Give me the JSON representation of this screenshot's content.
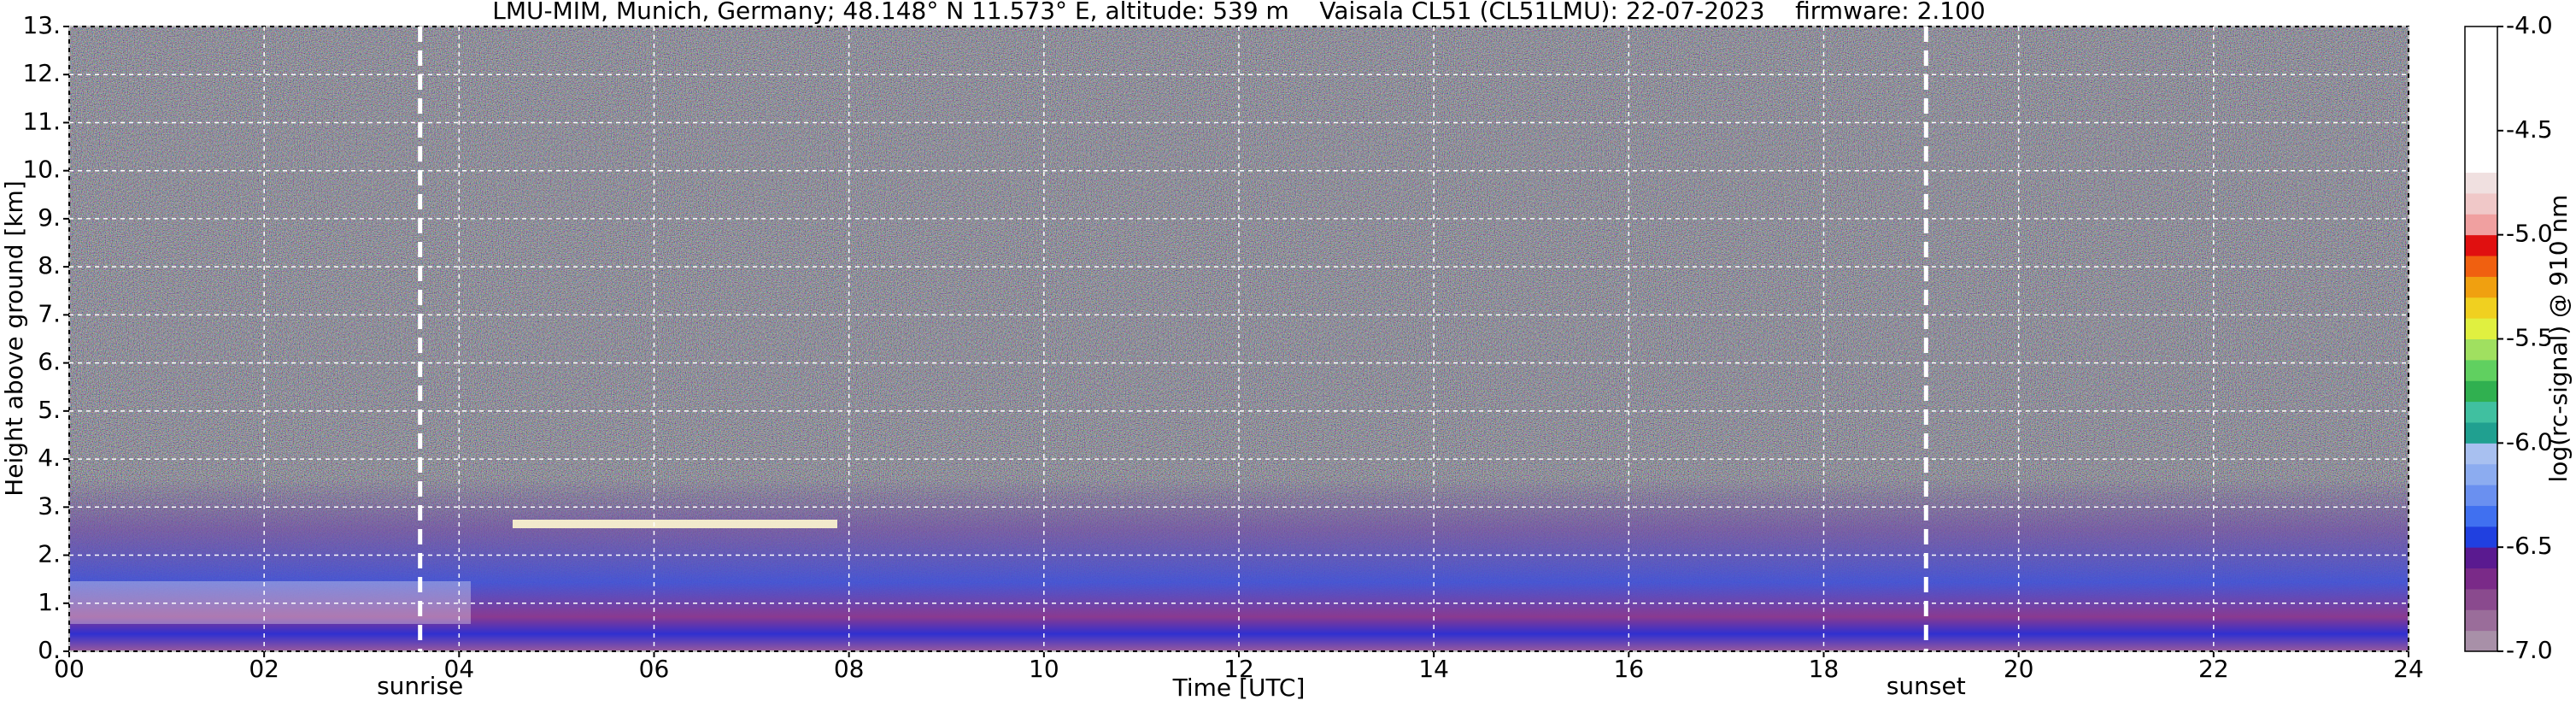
{
  "chart_data": {
    "type": "heatmap",
    "title": "LMU-MIM, Munich, Germany; 48.148° N 11.573° E, altitude: 539 m    Vaisala CL51 (CL51LMU): 22-07-2023    firmware: 2.100",
    "xlabel": "Time [UTC]",
    "ylabel": "Height above ground [km]",
    "xlim": [
      0,
      24
    ],
    "xticks": [
      {
        "value": 0,
        "label": "00"
      },
      {
        "value": 2,
        "label": "02"
      },
      {
        "value": 4,
        "label": "04"
      },
      {
        "value": 6,
        "label": "06"
      },
      {
        "value": 8,
        "label": "08"
      },
      10,
      12,
      14,
      16,
      18,
      20,
      22,
      24
    ],
    "ylim": [
      0,
      13
    ],
    "yticks": [
      {
        "value": 0,
        "label": "0."
      },
      {
        "value": 1,
        "label": "1."
      },
      {
        "value": 2,
        "label": "2."
      },
      {
        "value": 3,
        "label": "3."
      },
      {
        "value": 4,
        "label": "4."
      },
      {
        "value": 5,
        "label": "5."
      },
      {
        "value": 6,
        "label": "6."
      },
      {
        "value": 7,
        "label": "7."
      },
      {
        "value": 8,
        "label": "8."
      },
      {
        "value": 9,
        "label": "9."
      },
      {
        "value": 10,
        "label": "10."
      },
      {
        "value": 11,
        "label": "11."
      },
      {
        "value": 12,
        "label": "12."
      },
      {
        "value": 13,
        "label": "13."
      }
    ],
    "grid": true,
    "annotations": [
      {
        "x": 3.6,
        "label": "sunrise"
      },
      {
        "x": 19.05,
        "label": "sunset"
      }
    ],
    "colorbar": {
      "label": "log(rc-signal) @ 910 nm",
      "lim": [
        -7,
        -4
      ],
      "ticks": [
        {
          "value": -7,
          "label": "-7.0"
        },
        {
          "value": -6.5,
          "label": "-6.5"
        },
        {
          "value": -6,
          "label": "-6.0"
        },
        {
          "value": -5.5,
          "label": "-5.5"
        },
        {
          "value": -5,
          "label": "-5.0"
        },
        {
          "value": -4.5,
          "label": "-4.5"
        },
        {
          "value": -4,
          "label": "-4.0"
        }
      ],
      "colors": [
        "#a890a8",
        "#9a6d9a",
        "#8a4a8e",
        "#7a2a88",
        "#5a1a90",
        "#2040e0",
        "#4070f0",
        "#6a90f0",
        "#8cacf0",
        "#a8c0f0",
        "#20a090",
        "#40c0a0",
        "#30b050",
        "#60d060",
        "#a0e060",
        "#e0f040",
        "#f0d020",
        "#f0a010",
        "#f06010",
        "#e01010",
        "#f0a0a0",
        "#f0c8c8",
        "#f0e0e0",
        "#ffffff",
        "#ffffff",
        "#ffffff",
        "#ffffff",
        "#ffffff",
        "#ffffff",
        "#ffffff"
      ]
    }
  }
}
